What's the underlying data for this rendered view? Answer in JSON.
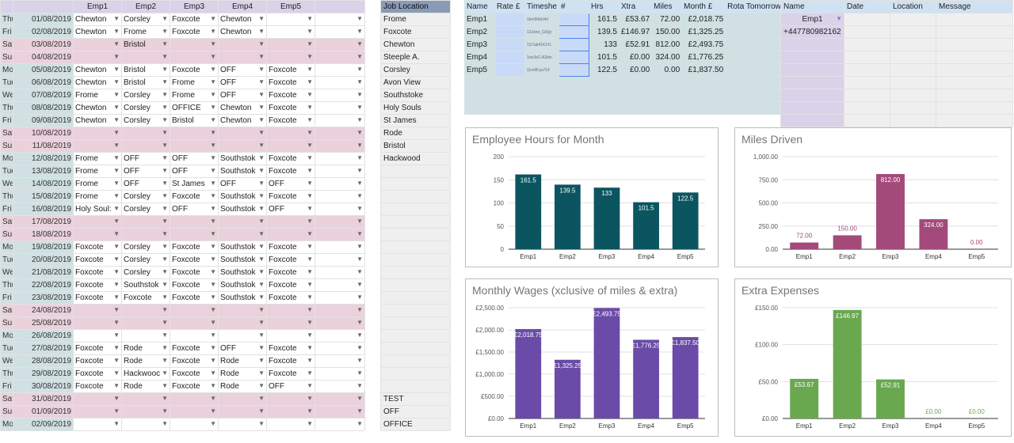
{
  "rota": {
    "headers": [
      "",
      "",
      "Emp1",
      "Emp2",
      "Emp3",
      "Emp4",
      "Emp5",
      ""
    ],
    "rows": [
      {
        "day": "Thu",
        "date": "01/08/2019",
        "c": [
          "Chewton",
          "Corsley",
          "Foxcote",
          "Chewton",
          ""
        ],
        "we": false
      },
      {
        "day": "Fri",
        "date": "02/08/2019",
        "c": [
          "Chewton",
          "Frome",
          "Foxcote",
          "Chewton",
          ""
        ],
        "we": false
      },
      {
        "day": "Sat",
        "date": "03/08/2019",
        "c": [
          "",
          "Bristol",
          "",
          "",
          ""
        ],
        "we": true
      },
      {
        "day": "Sun",
        "date": "04/08/2019",
        "c": [
          "",
          "",
          "",
          "",
          ""
        ],
        "we": true
      },
      {
        "day": "Mon",
        "date": "05/08/2019",
        "c": [
          "Chewton",
          "Bristol",
          "Foxcote",
          "OFF",
          "Foxcote"
        ],
        "we": false
      },
      {
        "day": "Tue",
        "date": "06/08/2019",
        "c": [
          "Chewton",
          "Bristol",
          "Frome",
          "OFF",
          "Foxcote"
        ],
        "we": false
      },
      {
        "day": "Wed",
        "date": "07/08/2019",
        "c": [
          "Frome",
          "Corsley",
          "Frome",
          "OFF",
          "Foxcote"
        ],
        "we": false
      },
      {
        "day": "Thu",
        "date": "08/08/2019",
        "c": [
          "Chewton",
          "Corsley",
          "OFFICE",
          "Chewton",
          "Foxcote"
        ],
        "we": false
      },
      {
        "day": "Fri",
        "date": "09/08/2019",
        "c": [
          "Chewton",
          "Corsley",
          "Bristol",
          "Chewton",
          "Foxcote"
        ],
        "we": false
      },
      {
        "day": "Sat",
        "date": "10/08/2019",
        "c": [
          "",
          "",
          "",
          "",
          ""
        ],
        "we": true
      },
      {
        "day": "Sun",
        "date": "11/08/2019",
        "c": [
          "",
          "",
          "",
          "",
          ""
        ],
        "we": true
      },
      {
        "day": "Mon",
        "date": "12/08/2019",
        "c": [
          "Frome",
          "OFF",
          "OFF",
          "Southstok",
          "Foxcote"
        ],
        "we": false
      },
      {
        "day": "Tue",
        "date": "13/08/2019",
        "c": [
          "Frome",
          "OFF",
          "OFF",
          "Southstok",
          "Foxcote"
        ],
        "we": false
      },
      {
        "day": "Wed",
        "date": "14/08/2019",
        "c": [
          "Frome",
          "OFF",
          "St James",
          "OFF",
          "OFF"
        ],
        "we": false
      },
      {
        "day": "Thu",
        "date": "15/08/2019",
        "c": [
          "Frome",
          "Corsley",
          "Foxcote",
          "Southstok",
          "Foxcote"
        ],
        "we": false
      },
      {
        "day": "Fri",
        "date": "16/08/2019",
        "c": [
          "Holy Soul:",
          "Corsley",
          "OFF",
          "Southstok",
          "OFF"
        ],
        "we": false
      },
      {
        "day": "Sat",
        "date": "17/08/2019",
        "c": [
          "",
          "",
          "",
          "",
          ""
        ],
        "we": true
      },
      {
        "day": "Sun",
        "date": "18/08/2019",
        "c": [
          "",
          "",
          "",
          "",
          ""
        ],
        "we": true
      },
      {
        "day": "Mon",
        "date": "19/08/2019",
        "c": [
          "Foxcote",
          "Corsley",
          "Foxcote",
          "Southstok",
          "Foxcote"
        ],
        "we": false
      },
      {
        "day": "Tue",
        "date": "20/08/2019",
        "c": [
          "Foxcote",
          "Corsley",
          "Foxcote",
          "Southstok",
          "Foxcote"
        ],
        "we": false
      },
      {
        "day": "Wed",
        "date": "21/08/2019",
        "c": [
          "Foxcote",
          "Corsley",
          "Foxcote",
          "Southstok",
          "Foxcote"
        ],
        "we": false
      },
      {
        "day": "Thu",
        "date": "22/08/2019",
        "c": [
          "Foxcote",
          "Southstok",
          "Foxcote",
          "Southstok",
          "Foxcote"
        ],
        "we": false
      },
      {
        "day": "Fri",
        "date": "23/08/2019",
        "c": [
          "Foxcote",
          "Foxcote",
          "Foxcote",
          "Southstok",
          "Foxcote"
        ],
        "we": false
      },
      {
        "day": "Sat",
        "date": "24/08/2019",
        "c": [
          "",
          "",
          "",
          "",
          ""
        ],
        "we": true
      },
      {
        "day": "Sun",
        "date": "25/08/2019",
        "c": [
          "",
          "",
          "",
          "",
          ""
        ],
        "we": true
      },
      {
        "day": "Mon",
        "date": "26/08/2019",
        "c": [
          "",
          "",
          "",
          "",
          ""
        ],
        "we": false
      },
      {
        "day": "Tue",
        "date": "27/08/2019",
        "c": [
          "Foxcote",
          "Rode",
          "Foxcote",
          "OFF",
          "Foxcote"
        ],
        "we": false
      },
      {
        "day": "Wed",
        "date": "28/08/2019",
        "c": [
          "Foxcote",
          "Rode",
          "Foxcote",
          "Rode",
          "Foxcote"
        ],
        "we": false
      },
      {
        "day": "Thu",
        "date": "29/08/2019",
        "c": [
          "Foxcote",
          "Hackwooc",
          "Foxcote",
          "Rode",
          "Foxcote"
        ],
        "we": false
      },
      {
        "day": "Fri",
        "date": "30/08/2019",
        "c": [
          "Foxcote",
          "Rode",
          "Foxcote",
          "Rode",
          "OFF"
        ],
        "we": false
      },
      {
        "day": "Sat",
        "date": "31/08/2019",
        "c": [
          "",
          "",
          "",
          "",
          ""
        ],
        "we": true
      },
      {
        "day": "Sun",
        "date": "01/09/2019",
        "c": [
          "",
          "",
          "",
          "",
          ""
        ],
        "we": true
      },
      {
        "day": "Mon",
        "date": "02/09/2019",
        "c": [
          "",
          "",
          "",
          "",
          ""
        ],
        "we": false
      }
    ]
  },
  "jobs": {
    "header": "Job Location",
    "items": [
      "Frome",
      "Foxcote",
      "Chewton",
      "Steeple A.",
      "Corsley",
      "Avon View",
      "Southstoke",
      "Holy Souls",
      "St James",
      "Rode",
      "Bristol",
      "Hackwood",
      "",
      "",
      "",
      "",
      "",
      "",
      "",
      "",
      "",
      "",
      "",
      "",
      "",
      "",
      "",
      "",
      "",
      "",
      "TEST",
      "OFF",
      "OFFICE"
    ]
  },
  "employees": {
    "headers": [
      "Name",
      "Rate £",
      "Timeshe",
      "#",
      "Hrs",
      "Xtra",
      "Miles",
      "Month £",
      "Rota Tomorrow:"
    ],
    "rows": [
      {
        "name": "Emp1",
        "ts": "1km9IlrtU4rl",
        "hrs": "161.5",
        "xtra": "£53.67",
        "miles": "72.00",
        "month": "£2,018.75"
      },
      {
        "name": "Emp2",
        "ts": "13Jeire_GtQp",
        "hrs": "139.5",
        "xtra": "£146.97",
        "miles": "150.00",
        "month": "£1,325.25"
      },
      {
        "name": "Emp3",
        "ts": "1S7ab41K1%",
        "hrs": "133",
        "xtra": "£52.91",
        "miles": "812.00",
        "month": "£2,493.75"
      },
      {
        "name": "Emp4",
        "ts": "1ne3xC-A2ktn",
        "hrs": "101.5",
        "xtra": "£0.00",
        "miles": "324.00",
        "month": "£1,776.25"
      },
      {
        "name": "Emp5",
        "ts": "11m9Fyu714",
        "hrs": "122.5",
        "xtra": "£0.00",
        "miles": "0.00",
        "month": "£1,837.50"
      }
    ]
  },
  "messaging": {
    "headers": [
      "Name",
      "Date",
      "Location",
      "Message"
    ],
    "name": "Emp1",
    "phone": "+447780982162"
  },
  "chart_data": [
    {
      "type": "bar",
      "title": "Employee Hours for Month",
      "categories": [
        "Emp1",
        "Emp2",
        "Emp3",
        "Emp4",
        "Emp5"
      ],
      "values": [
        161.5,
        139.5,
        133,
        101.5,
        122.5
      ],
      "labels": [
        "161.5",
        "139.5",
        "133",
        "101.5",
        "122.5"
      ],
      "ylim": [
        0,
        200
      ],
      "ticks": [
        "0",
        "50",
        "100",
        "150",
        "200"
      ],
      "color": "#0b5560",
      "label_inside": true
    },
    {
      "type": "bar",
      "title": "Miles Driven",
      "categories": [
        "Emp1",
        "Emp2",
        "Emp3",
        "Emp4",
        "Emp5"
      ],
      "values": [
        72,
        150,
        812,
        324,
        0
      ],
      "labels": [
        "72.00",
        "150.00",
        "812.00",
        "324.00",
        "0.00"
      ],
      "ylim": [
        0,
        1000
      ],
      "ticks": [
        "0.00",
        "250.00",
        "500.00",
        "750.00",
        "1,000.00"
      ],
      "color": "#a34a7a"
    },
    {
      "type": "bar",
      "title": "Monthly Wages (xclusive of miles & extra)",
      "categories": [
        "Emp1",
        "Emp2",
        "Emp3",
        "Emp4",
        "Emp5"
      ],
      "values": [
        2018.75,
        1325.25,
        2493.75,
        1776.25,
        1837.5
      ],
      "labels": [
        "£2,018.75",
        "£1,325.25",
        "£2,493.75",
        "£1,776.25",
        "£1,837.50"
      ],
      "ylim": [
        0,
        2500
      ],
      "ticks": [
        "£0.00",
        "£500.00",
        "£1,000.00",
        "£1,500.00",
        "£2,000.00",
        "£2,500.00"
      ],
      "color": "#6a4ba8"
    },
    {
      "type": "bar",
      "title": "Extra Expenses",
      "categories": [
        "Emp1",
        "Emp2",
        "Emp3",
        "Emp4",
        "Emp5"
      ],
      "values": [
        53.67,
        146.97,
        52.91,
        0,
        0
      ],
      "labels": [
        "£53.67",
        "£146.97",
        "£52.91",
        "£0.00",
        "£0.00"
      ],
      "ylim": [
        0,
        150
      ],
      "ticks": [
        "£0.00",
        "£50.00",
        "£100.00",
        "£150.00"
      ],
      "color": "#6aa84f",
      "label_inside": true
    }
  ]
}
